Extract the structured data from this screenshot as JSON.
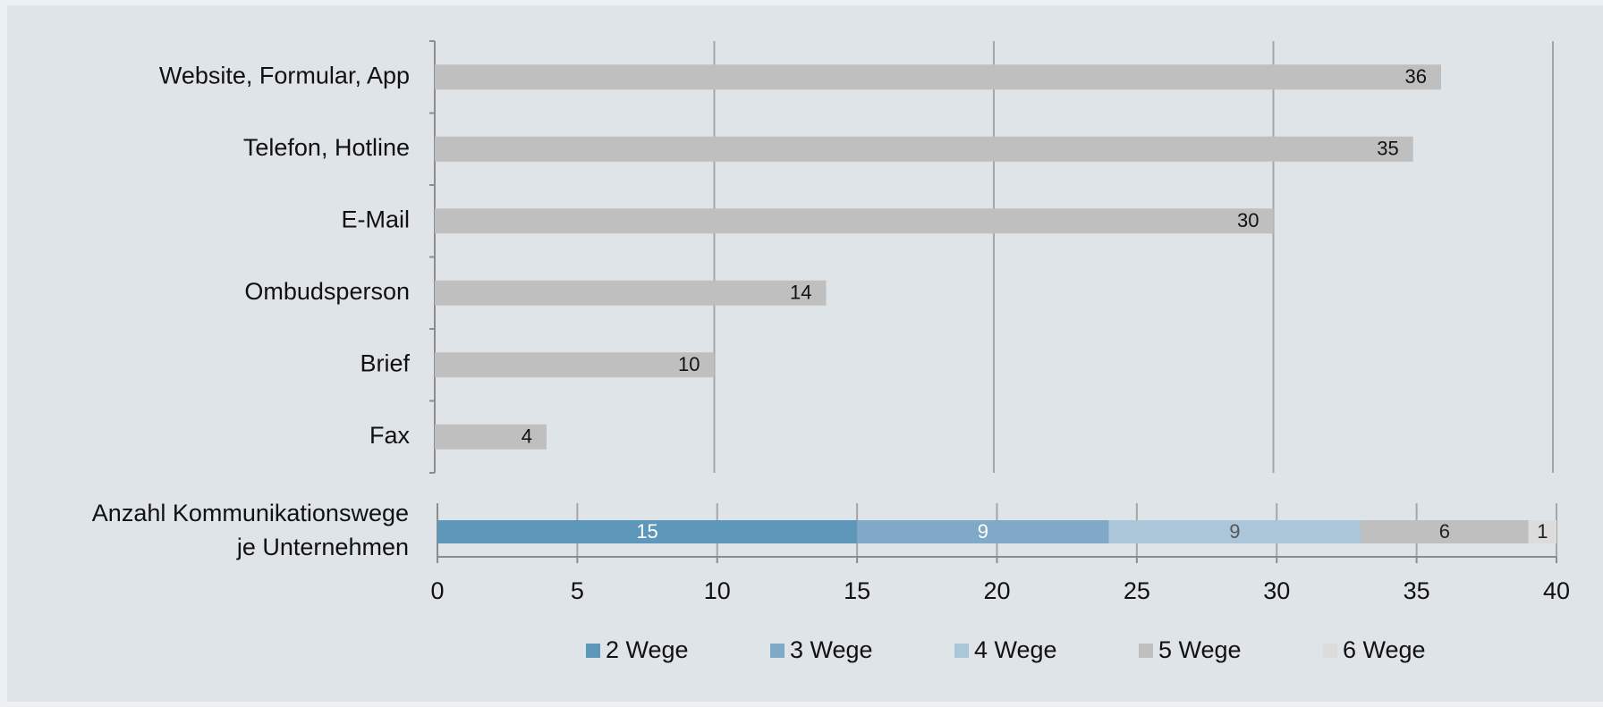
{
  "chart_data": [
    {
      "type": "bar",
      "categories": [
        "Website, Formular, App",
        "Telefon, Hotline",
        "E-Mail",
        "Ombudsperson",
        "Brief",
        "Fax"
      ],
      "values": [
        36,
        35,
        30,
        14,
        10,
        4
      ],
      "color": "#bfbfbf",
      "xlim": [
        0,
        40
      ],
      "xticks": [
        0,
        10,
        20,
        30,
        40
      ],
      "grid": true
    },
    {
      "type": "stacked_bar",
      "categories": [
        "Anzahl Kommunikationswege\nje Unternehmen"
      ],
      "series": [
        {
          "name": "2 Wege",
          "color": "#5d97ba",
          "label_color": "#ffffff",
          "values": [
            15
          ]
        },
        {
          "name": "3 Wege",
          "color": "#80a9c7",
          "label_color": "#ffffff",
          "values": [
            9
          ]
        },
        {
          "name": "4 Wege",
          "color": "#aac6d8",
          "label_color": "#555555",
          "values": [
            9
          ]
        },
        {
          "name": "5 Wege",
          "color": "#bfbfbf",
          "label_color": "#222222",
          "values": [
            6
          ]
        },
        {
          "name": "6 Wege",
          "color": "#dcdcdc",
          "label_color": "#222222",
          "values": [
            1
          ]
        }
      ],
      "xlim": [
        0,
        40
      ],
      "xticks": [
        0,
        5,
        10,
        15,
        20,
        25,
        30,
        35,
        40
      ],
      "grid": true,
      "legend": "bottom"
    }
  ]
}
